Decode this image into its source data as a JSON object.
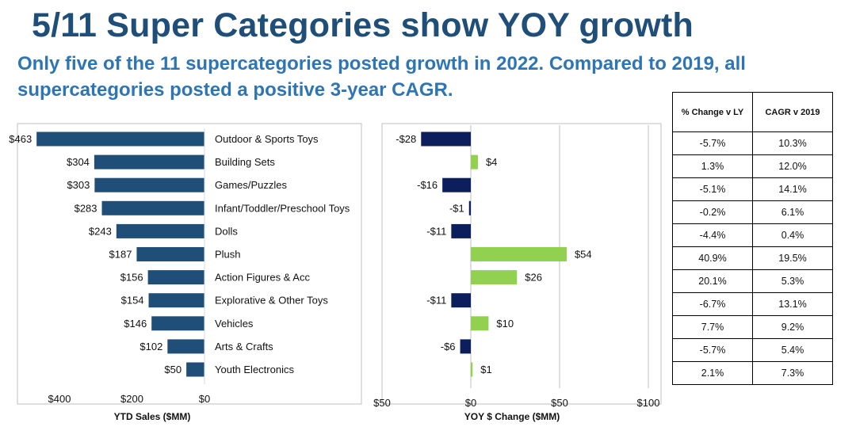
{
  "title": "5/11 Super Categories show YOY growth",
  "subtitle": "Only five of the 11 supercategories posted growth in 2022. Compared to 2019, all supercategories posted a positive 3-year CAGR.",
  "colors": {
    "title": "#1f4e79",
    "subtitle": "#2e75b6",
    "sales_bar": "#1f4e79",
    "negative_bar": "#0c1f5c",
    "positive_bar": "#92d050",
    "neg_tick": "#c00000"
  },
  "chart_data": [
    {
      "type": "bar",
      "orientation": "horizontal",
      "title": "",
      "xlabel": "YTD Sales ($MM)",
      "categories": [
        "Outdoor & Sports Toys",
        "Building Sets",
        "Games/Puzzles",
        "Infant/Toddler/Preschool Toys",
        "Dolls",
        "Plush",
        "Action Figures & Acc",
        "Explorative & Other Toys",
        "Vehicles",
        "Arts & Crafts",
        "Youth Electronics"
      ],
      "values": [
        463,
        304,
        303,
        283,
        243,
        187,
        156,
        154,
        146,
        102,
        50
      ],
      "value_labels": [
        "$463",
        "$304",
        "$303",
        "$283",
        "$243",
        "$187",
        "$156",
        "$154",
        "$146",
        "$102",
        "$50"
      ],
      "x_reversed": true,
      "xlim": [
        0,
        500
      ],
      "x_ticks": [
        400,
        200,
        0
      ],
      "x_tick_labels": [
        "$400",
        "$200",
        "$0"
      ]
    },
    {
      "type": "bar",
      "orientation": "horizontal",
      "title": "",
      "xlabel": "YOY $ Change ($MM)",
      "categories": [
        "Outdoor & Sports Toys",
        "Building Sets",
        "Games/Puzzles",
        "Infant/Toddler/Preschool Toys",
        "Dolls",
        "Plush",
        "Action Figures & Acc",
        "Explorative & Other Toys",
        "Vehicles",
        "Arts & Crafts",
        "Youth Electronics"
      ],
      "values": [
        -28,
        4,
        -16,
        -1,
        -11,
        54,
        26,
        -11,
        10,
        -6,
        1
      ],
      "value_labels": [
        "-$28",
        "$4",
        "-$16",
        "-$1",
        "-$11",
        "$54",
        "$26",
        "-$11",
        "$10",
        "-$6",
        "$1"
      ],
      "xlim": [
        -50,
        100
      ],
      "x_ticks": [
        -50,
        0,
        50,
        100
      ],
      "x_tick_labels": [
        "$50",
        "$0",
        "$50",
        "$100"
      ],
      "grid": true
    },
    {
      "type": "table",
      "columns": [
        "% Change v LY",
        "CAGR v 2019"
      ],
      "rows": [
        [
          "-5.7%",
          "10.3%"
        ],
        [
          "1.3%",
          "12.0%"
        ],
        [
          "-5.1%",
          "14.1%"
        ],
        [
          "-0.2%",
          "6.1%"
        ],
        [
          "-4.4%",
          "0.4%"
        ],
        [
          "40.9%",
          "19.5%"
        ],
        [
          "20.1%",
          "5.3%"
        ],
        [
          "-6.7%",
          "13.1%"
        ],
        [
          "7.7%",
          "9.2%"
        ],
        [
          "-5.7%",
          "5.4%"
        ],
        [
          "2.1%",
          "7.3%"
        ]
      ]
    }
  ]
}
